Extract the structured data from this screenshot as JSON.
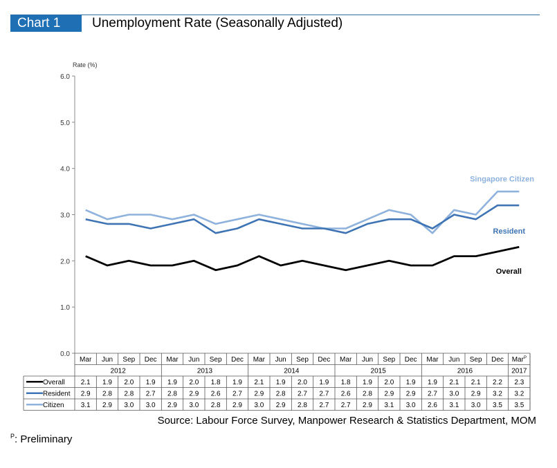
{
  "header": {
    "tag": "Chart 1",
    "title": "Unemployment Rate (Seasonally Adjusted)"
  },
  "source": "Source: Labour Force Survey, Manpower Research & Statistics Department, MOM",
  "footnote": {
    "marker": "P",
    "text": ": Preliminary"
  },
  "chart_data": {
    "type": "line",
    "ylabel": "Rate (%)",
    "ylim": [
      0,
      6
    ],
    "yticks": [
      "0.0",
      "1.0",
      "2.0",
      "3.0",
      "4.0",
      "5.0",
      "6.0"
    ],
    "categories": [
      "Mar",
      "Jun",
      "Sep",
      "Dec",
      "Mar",
      "Jun",
      "Sep",
      "Dec",
      "Mar",
      "Jun",
      "Sep",
      "Dec",
      "Mar",
      "Jun",
      "Sep",
      "Dec",
      "Mar",
      "Jun",
      "Sep",
      "Dec",
      "Mar"
    ],
    "last_category_superscript": "P",
    "years": [
      {
        "label": "2012",
        "count": 4
      },
      {
        "label": "2013",
        "count": 4
      },
      {
        "label": "2014",
        "count": 4
      },
      {
        "label": "2015",
        "count": 4
      },
      {
        "label": "2016",
        "count": 4
      },
      {
        "label": "2017",
        "count": 1
      }
    ],
    "series": [
      {
        "name": "Overall",
        "label": "Overall",
        "color": "#000000",
        "values": [
          2.1,
          1.9,
          2.0,
          1.9,
          1.9,
          2.0,
          1.8,
          1.9,
          2.1,
          1.9,
          2.0,
          1.9,
          1.8,
          1.9,
          2.0,
          1.9,
          1.9,
          2.1,
          2.1,
          2.2,
          2.3
        ]
      },
      {
        "name": "Resident",
        "label": "Resident",
        "color": "#3f74b4",
        "values": [
          2.9,
          2.8,
          2.8,
          2.7,
          2.8,
          2.9,
          2.6,
          2.7,
          2.9,
          2.8,
          2.7,
          2.7,
          2.6,
          2.8,
          2.9,
          2.9,
          2.7,
          3.0,
          2.9,
          3.2,
          3.2
        ]
      },
      {
        "name": "Citizen",
        "label": "Singapore Citizen",
        "color": "#8eb2dc",
        "values": [
          3.1,
          2.9,
          3.0,
          3.0,
          2.9,
          3.0,
          2.8,
          2.9,
          3.0,
          2.9,
          2.8,
          2.7,
          2.7,
          2.9,
          3.1,
          3.0,
          2.6,
          3.1,
          3.0,
          3.5,
          3.5
        ]
      }
    ],
    "table_values": {
      "Overall": [
        "2.1",
        "1.9",
        "2.0",
        "1.9",
        "1.9",
        "2.0",
        "1.8",
        "1.9",
        "2.1",
        "1.9",
        "2.0",
        "1.9",
        "1.8",
        "1.9",
        "2.0",
        "1.9",
        "1.9",
        "2.1",
        "2.1",
        "2.2",
        "2.3"
      ],
      "Resident": [
        "2.9",
        "2.8",
        "2.8",
        "2.7",
        "2.8",
        "2.9",
        "2.6",
        "2.7",
        "2.9",
        "2.8",
        "2.7",
        "2.7",
        "2.6",
        "2.8",
        "2.9",
        "2.9",
        "2.7",
        "3.0",
        "2.9",
        "3.2",
        "3.2"
      ],
      "Citizen": [
        "3.1",
        "2.9",
        "3.0",
        "3.0",
        "2.9",
        "3.0",
        "2.8",
        "2.9",
        "3.0",
        "2.9",
        "2.8",
        "2.7",
        "2.7",
        "2.9",
        "3.1",
        "3.0",
        "2.6",
        "3.1",
        "3.0",
        "3.5",
        "3.5"
      ]
    },
    "grid": false
  }
}
